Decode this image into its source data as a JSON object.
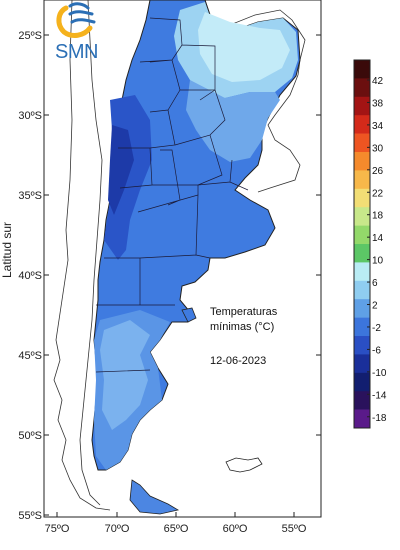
{
  "logo": {
    "text": "SMN"
  },
  "map": {
    "y_axis_label": "Latitud sur",
    "lat_ticks": [
      "25ºS",
      "30ºS",
      "35ºS",
      "40ºS",
      "45ºS",
      "50ºS",
      "55ºS"
    ],
    "lon_ticks": [
      "75ºO",
      "70ºO",
      "65ºO",
      "60ºO",
      "55ºO"
    ],
    "title_line1": "Temperaturas",
    "title_line2": "mínimas (°C)",
    "date": "12-06-2023"
  },
  "colorbar": {
    "labels": [
      "42",
      "38",
      "34",
      "30",
      "26",
      "22",
      "18",
      "14",
      "10",
      "6",
      "2",
      "-2",
      "-6",
      "-10",
      "-14",
      "-18"
    ],
    "colors": [
      "#3a0a0a",
      "#6b0f0f",
      "#a31414",
      "#d42a1a",
      "#ee5522",
      "#f58a2c",
      "#f7b84a",
      "#f2de75",
      "#c8e88a",
      "#93d96a",
      "#5cc766",
      "#b9ecf4",
      "#8fcdf0",
      "#5fa0e6",
      "#3c75dc",
      "#2a4fc4",
      "#1a2f9a",
      "#121e70",
      "#2a125c",
      "#5a1a8a"
    ]
  }
}
